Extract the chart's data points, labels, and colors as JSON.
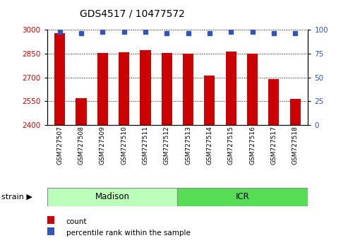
{
  "title": "GDS4517 / 10477572",
  "samples": [
    "GSM727507",
    "GSM727508",
    "GSM727509",
    "GSM727510",
    "GSM727511",
    "GSM727512",
    "GSM727513",
    "GSM727514",
    "GSM727515",
    "GSM727516",
    "GSM727517",
    "GSM727518"
  ],
  "counts": [
    2980,
    2570,
    2855,
    2858,
    2875,
    2855,
    2852,
    2710,
    2865,
    2850,
    2690,
    2565
  ],
  "percentiles": [
    98,
    97,
    98,
    98,
    98,
    97,
    97,
    97,
    98,
    98,
    97,
    97
  ],
  "ylim_left": [
    2400,
    3000
  ],
  "ylim_right": [
    0,
    100
  ],
  "yticks_left": [
    2400,
    2550,
    2700,
    2850,
    3000
  ],
  "yticks_right": [
    0,
    25,
    50,
    75,
    100
  ],
  "bar_color": "#cc0000",
  "dot_color": "#3355bb",
  "bar_width": 0.5,
  "grid_color": "black",
  "madison_color": "#bbffbb",
  "icr_color": "#55dd55",
  "strain_label": "strain",
  "madison_label": "Madison",
  "icr_label": "ICR",
  "legend_count_label": "count",
  "legend_pct_label": "percentile rank within the sample",
  "bg_color": "#ffffff",
  "left_tick_color": "#cc0000",
  "right_tick_color": "#3355bb",
  "title_fontsize": 10,
  "tick_fontsize": 7.5,
  "xtick_fontsize": 6.5,
  "legend_fontsize": 7.5,
  "strain_fontsize": 8,
  "group_fontsize": 8.5
}
